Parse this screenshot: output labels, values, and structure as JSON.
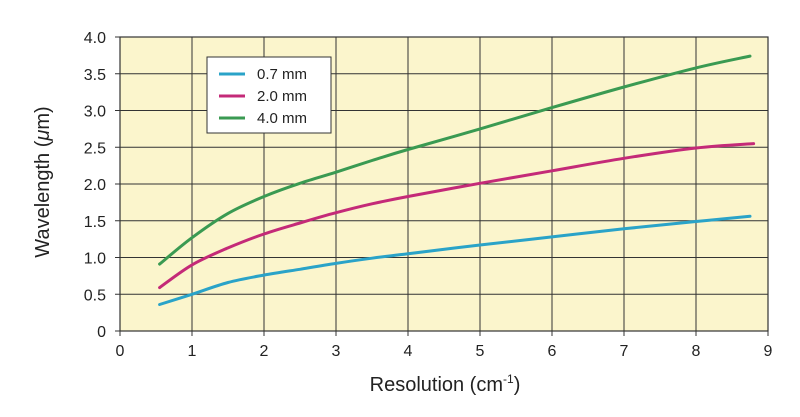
{
  "chart_data": {
    "type": "line",
    "title": "",
    "xlabel": "Resolution (cm-1)",
    "xlabel_main": "Resolution (cm",
    "xlabel_sup": "-1",
    "xlabel_close": ")",
    "ylabel": "Wavelength (μm)",
    "ylabel_main": "Wavelength (",
    "ylabel_mu": "μ",
    "ylabel_rest": "m)",
    "xlim": [
      0,
      9
    ],
    "ylim": [
      0,
      4.0
    ],
    "x_ticks": [
      "0",
      "1",
      "2",
      "3",
      "4",
      "5",
      "6",
      "7",
      "8",
      "9"
    ],
    "y_ticks": [
      "0",
      "0.5",
      "1.0",
      "1.5",
      "2.0",
      "2.5",
      "3.0",
      "3.5",
      "4.0"
    ],
    "grid": true,
    "plot_background": "#fbf5cc",
    "legend_position": "top-left",
    "series": [
      {
        "name": "0.7 mm",
        "color": "#2aa3c8",
        "x": [
          0.55,
          1.0,
          1.5,
          2.0,
          2.5,
          3.0,
          3.5,
          4.0,
          5.0,
          6.0,
          7.0,
          8.0,
          8.75
        ],
        "y": [
          0.36,
          0.5,
          0.66,
          0.76,
          0.84,
          0.92,
          0.99,
          1.05,
          1.17,
          1.28,
          1.39,
          1.49,
          1.56
        ]
      },
      {
        "name": "2.0 mm",
        "color": "#c42a78",
        "x": [
          0.55,
          1.0,
          1.5,
          2.0,
          2.5,
          3.0,
          3.5,
          4.0,
          5.0,
          6.0,
          7.0,
          8.0,
          8.8
        ],
        "y": [
          0.59,
          0.9,
          1.13,
          1.32,
          1.47,
          1.61,
          1.73,
          1.83,
          2.01,
          2.18,
          2.35,
          2.49,
          2.55
        ]
      },
      {
        "name": "4.0 mm",
        "color": "#3a9a52",
        "x": [
          0.55,
          1.0,
          1.5,
          2.0,
          2.5,
          3.0,
          3.5,
          4.0,
          5.0,
          6.0,
          7.0,
          8.0,
          8.75
        ],
        "y": [
          0.91,
          1.27,
          1.6,
          1.83,
          2.01,
          2.16,
          2.32,
          2.47,
          2.75,
          3.04,
          3.32,
          3.58,
          3.74
        ]
      }
    ]
  }
}
